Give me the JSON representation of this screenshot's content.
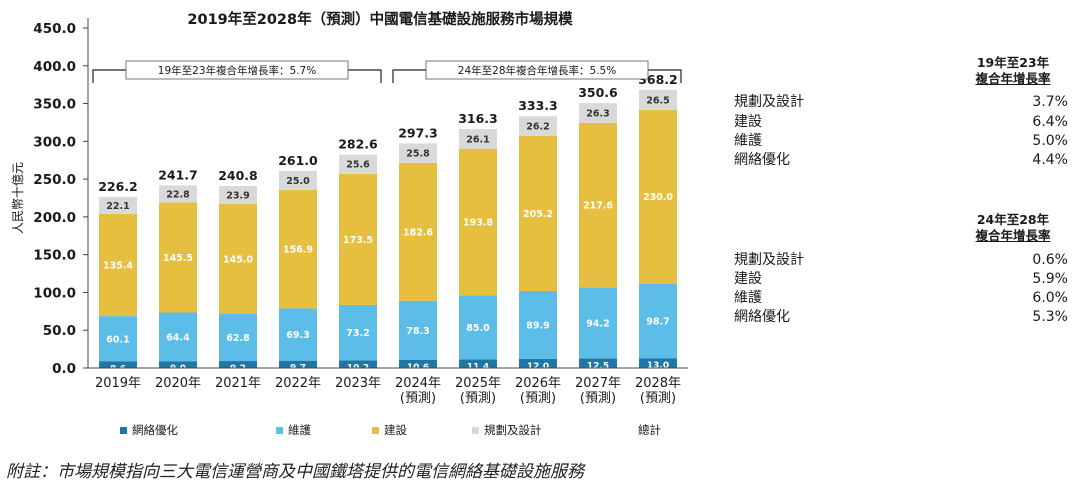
{
  "chart_data": {
    "type": "bar",
    "stacked": true,
    "title": "2019年至2028年（預測）中國電信基礎設施服務市場規模",
    "ylabel": "人民幣十億元",
    "xlabel": "",
    "ylim": [
      0,
      450
    ],
    "yticks": [
      "0.0",
      "50.0",
      "100.0",
      "150.0",
      "200.0",
      "250.0",
      "300.0",
      "350.0",
      "400.0",
      "450.0"
    ],
    "categories": [
      [
        "2019年"
      ],
      [
        "2020年"
      ],
      [
        "2021年"
      ],
      [
        "2022年"
      ],
      [
        "2023年"
      ],
      [
        "2024年",
        "(預測)"
      ],
      [
        "2025年",
        "(預測)"
      ],
      [
        "2026年",
        "(預測)"
      ],
      [
        "2027年",
        "(預測)"
      ],
      [
        "2028年",
        "(預測)"
      ]
    ],
    "series": [
      {
        "name": "網絡優化",
        "color": "#1f77a8",
        "values": [
          8.6,
          9.0,
          9.2,
          9.7,
          10.2,
          10.6,
          11.4,
          12.0,
          12.5,
          13.0
        ]
      },
      {
        "name": "維護",
        "color": "#5bbde8",
        "values": [
          60.1,
          64.4,
          62.8,
          69.3,
          73.2,
          78.3,
          85.0,
          89.9,
          94.2,
          98.7
        ]
      },
      {
        "name": "建設",
        "color": "#e6bf40",
        "values": [
          135.4,
          145.5,
          145.0,
          156.9,
          173.5,
          182.6,
          193.8,
          205.2,
          217.6,
          230.0
        ]
      },
      {
        "name": "規劃及設計",
        "color": "#d9d9d9",
        "values": [
          22.1,
          22.8,
          23.9,
          25.0,
          25.6,
          25.8,
          26.1,
          26.2,
          26.3,
          26.5
        ]
      }
    ],
    "totals": [
      226.2,
      241.7,
      240.8,
      261.0,
      282.6,
      297.3,
      316.3,
      333.3,
      350.6,
      368.2
    ],
    "totals_legend": "總計",
    "brackets": [
      {
        "label": "19年至23年複合年增長率：5.7%",
        "from": 0,
        "to": 4
      },
      {
        "label": "24年至28年複合年增長率：5.5%",
        "from": 5,
        "to": 9
      }
    ]
  },
  "cagr_panels": [
    {
      "heading": [
        "19年至23年",
        "複合年增長率"
      ],
      "rows": [
        {
          "label": "規劃及設計",
          "value": "3.7%"
        },
        {
          "label": "建設",
          "value": "6.4%"
        },
        {
          "label": "維護",
          "value": "5.0%"
        },
        {
          "label": "網絡優化",
          "value": "4.4%"
        }
      ]
    },
    {
      "heading": [
        "24年至28年",
        "複合年增長率"
      ],
      "rows": [
        {
          "label": "規劃及設計",
          "value": "0.6%"
        },
        {
          "label": "建設",
          "value": "5.9%"
        },
        {
          "label": "維護",
          "value": "6.0%"
        },
        {
          "label": "網絡優化",
          "value": "5.3%"
        }
      ]
    }
  ],
  "footnote": "附註：市場規模指向三大電信運營商及中國鐵塔提供的電信網絡基礎設施服務"
}
